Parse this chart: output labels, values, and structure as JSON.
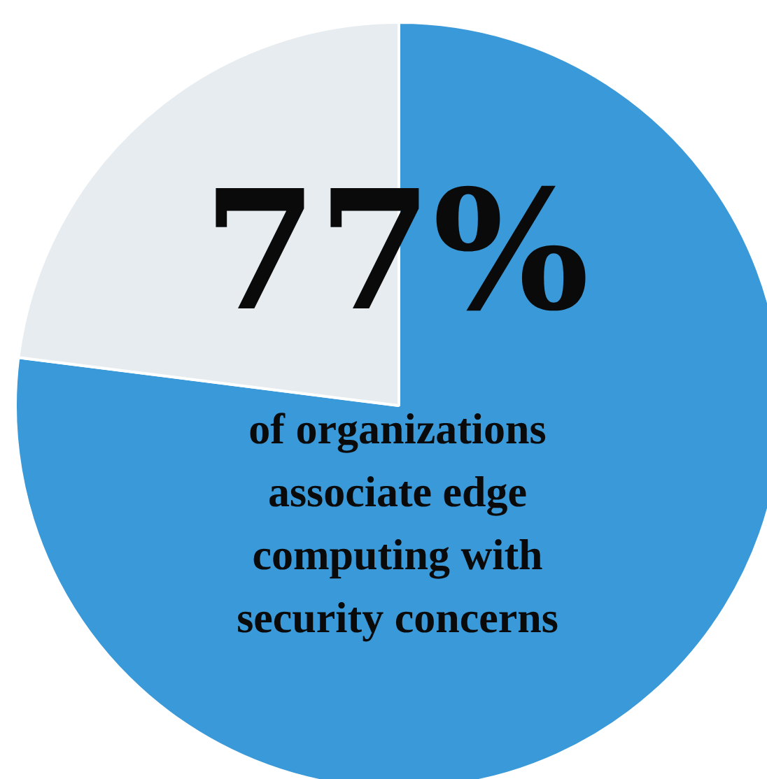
{
  "chart_data": {
    "type": "pie",
    "categories": [
      null,
      null
    ],
    "values": [
      77,
      23
    ],
    "colors": [
      "#3a99d8",
      "#e6ecef"
    ],
    "value_labels": [
      "77%",
      null
    ],
    "legend": false,
    "annotations": [
      "of organizations associate edge computing with security concerns"
    ]
  }
}
